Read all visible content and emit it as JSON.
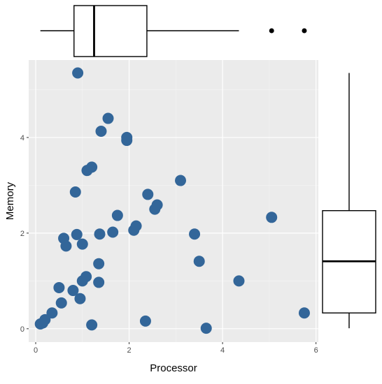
{
  "chart_data": {
    "type": "scatter",
    "title": "",
    "xlabel": "Processor",
    "ylabel": "Memory",
    "xlim": [
      -0.15,
      6.05
    ],
    "ylim": [
      -0.28,
      5.62
    ],
    "xticks": [
      0,
      2,
      4,
      6
    ],
    "yticks": [
      0,
      2,
      4
    ],
    "grid": true,
    "panel_background": "#ebebeb",
    "point_color": "#336699",
    "series": [
      {
        "x": [
          0.1,
          0.15,
          0.2,
          0.35,
          0.5,
          0.55,
          0.6,
          0.65,
          0.8,
          0.85,
          0.88,
          0.9,
          0.95,
          1.0,
          1.0,
          1.08,
          1.1,
          1.2,
          1.2,
          1.35,
          1.35,
          1.37,
          1.4,
          1.55,
          1.65,
          1.75,
          1.95,
          1.95,
          2.1,
          2.15,
          2.35,
          2.4,
          2.55,
          2.6,
          3.1,
          3.4,
          3.5,
          3.65,
          4.35,
          5.05,
          5.75
        ],
        "y": [
          0.1,
          0.12,
          0.19,
          0.33,
          0.86,
          0.54,
          1.89,
          1.73,
          0.8,
          2.86,
          1.97,
          5.35,
          0.63,
          1.0,
          1.77,
          1.09,
          3.31,
          3.38,
          0.08,
          0.97,
          1.36,
          1.98,
          4.13,
          4.4,
          2.02,
          2.37,
          3.94,
          4.0,
          2.06,
          2.15,
          0.16,
          2.81,
          2.5,
          2.59,
          3.1,
          1.98,
          1.41,
          0.01,
          1.0,
          2.33,
          0.33
        ]
      }
    ],
    "marginal_boxplots": [
      {
        "axis": "x",
        "whisker_low": 0.1,
        "q1": 0.82,
        "median": 1.25,
        "q3": 2.38,
        "whisker_high": 4.35,
        "outliers": [
          5.05,
          5.75
        ]
      },
      {
        "axis": "y",
        "whisker_low": 0.01,
        "q1": 0.33,
        "median": 1.41,
        "q3": 2.47,
        "whisker_high": 5.35,
        "outliers": []
      }
    ]
  }
}
